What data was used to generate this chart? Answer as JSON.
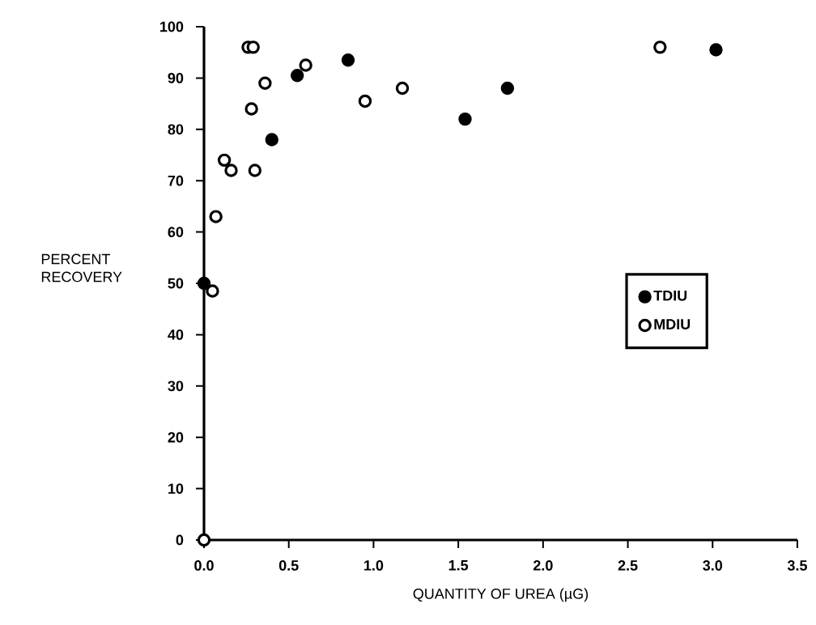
{
  "chart_data": {
    "type": "scatter",
    "xlabel": "QUANTITY OF UREA (µG)",
    "ylabel": "PERCENT RECOVERY",
    "series": [
      {
        "name": "TDIU",
        "color": "#000000",
        "x": [
          0.0,
          0.4,
          0.55,
          0.85,
          1.54,
          1.79,
          3.02
        ],
        "values": [
          50,
          78,
          90.5,
          93.5,
          82,
          88,
          95.5
        ]
      },
      {
        "name": "MDIU",
        "color": "#000000",
        "x": [
          0.0,
          0.05,
          0.07,
          0.12,
          0.16,
          0.26,
          0.29,
          0.28,
          0.3,
          0.36,
          0.6,
          0.95,
          1.17,
          2.69
        ],
        "values": [
          0,
          48.5,
          63,
          74,
          72,
          96,
          96,
          84,
          72,
          89,
          92.5,
          85.5,
          88,
          96
        ]
      }
    ],
    "xlim": [
      0,
      3.5
    ],
    "ylim": [
      0,
      100
    ],
    "xticks": [
      {
        "value": 0,
        "label": "0.0"
      },
      0.5,
      {
        "value": 1,
        "label": "1.0"
      },
      1.5,
      {
        "value": 2,
        "label": "2.0"
      },
      2.5,
      {
        "value": 3,
        "label": "3.0"
      },
      3.5
    ],
    "yticks": [
      0,
      10,
      20,
      30,
      40,
      50,
      60,
      70,
      80,
      90,
      100
    ],
    "legend": "right",
    "grid": false,
    "marker": "circle"
  }
}
